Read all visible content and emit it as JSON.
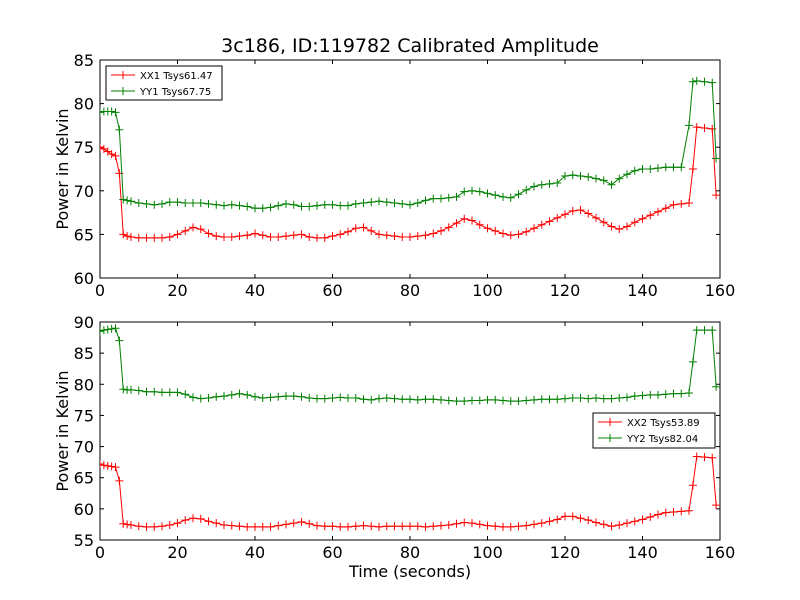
{
  "chart_data": {
    "type": "line",
    "title": "3c186, ID:119782 Calibrated Amplitude",
    "xlabel": "Time (seconds)",
    "ylabel": "Power in Kelvin",
    "colors": {
      "XX": "#ff0000",
      "YY": "#008000"
    },
    "subplots": [
      {
        "ylabel": "Power in Kelvin",
        "xlim": [
          0,
          160
        ],
        "ylim": [
          60,
          85
        ],
        "xticks": [
          "0",
          "20",
          "40",
          "60",
          "80",
          "100",
          "120",
          "140",
          "160"
        ],
        "yticks": [
          "60",
          "65",
          "70",
          "75",
          "80",
          "85"
        ],
        "legend_position": "top-left",
        "x": [
          0,
          1,
          2,
          3,
          4,
          5,
          6,
          7,
          8,
          10,
          12,
          14,
          16,
          18,
          20,
          22,
          24,
          26,
          28,
          30,
          32,
          34,
          36,
          38,
          40,
          42,
          44,
          46,
          48,
          50,
          52,
          54,
          56,
          58,
          60,
          62,
          64,
          66,
          68,
          70,
          72,
          74,
          76,
          78,
          80,
          82,
          84,
          86,
          88,
          90,
          92,
          94,
          96,
          98,
          100,
          102,
          104,
          106,
          108,
          110,
          112,
          114,
          116,
          118,
          120,
          122,
          124,
          126,
          128,
          130,
          132,
          134,
          136,
          138,
          140,
          142,
          144,
          146,
          148,
          150,
          152,
          153,
          154,
          156,
          158,
          159
        ],
        "series": [
          {
            "name": "XX1 Tsys61.47",
            "color": "#ff0000",
            "values": [
              75,
              74.8,
              74.5,
              74.2,
              74,
              72,
              65,
              64.8,
              64.7,
              64.6,
              64.6,
              64.6,
              64.6,
              64.7,
              65,
              65.4,
              65.8,
              65.6,
              65.1,
              64.8,
              64.7,
              64.7,
              64.8,
              64.9,
              65.1,
              64.9,
              64.7,
              64.7,
              64.8,
              64.9,
              65,
              64.7,
              64.6,
              64.6,
              64.8,
              65,
              65.3,
              65.7,
              65.8,
              65.4,
              65,
              64.9,
              64.8,
              64.7,
              64.7,
              64.8,
              64.9,
              65.1,
              65.4,
              65.8,
              66.3,
              66.8,
              66.6,
              66.1,
              65.7,
              65.4,
              65.1,
              64.9,
              65,
              65.3,
              65.7,
              66.1,
              66.5,
              66.9,
              67.3,
              67.7,
              67.8,
              67.4,
              66.9,
              66.4,
              65.9,
              65.6,
              65.9,
              66.4,
              66.8,
              67.2,
              67.6,
              68,
              68.4,
              68.5,
              68.6,
              72.5,
              77.3,
              77.2,
              77.1,
              69.5
            ]
          },
          {
            "name": "YY1 Tsys67.75",
            "color": "#008000",
            "values": [
              79,
              79.1,
              79.1,
              79.1,
              79,
              77,
              69,
              68.9,
              68.8,
              68.6,
              68.5,
              68.4,
              68.5,
              68.7,
              68.7,
              68.6,
              68.6,
              68.6,
              68.5,
              68.4,
              68.3,
              68.4,
              68.3,
              68.2,
              68,
              68,
              68.1,
              68.3,
              68.5,
              68.4,
              68.2,
              68.2,
              68.3,
              68.4,
              68.4,
              68.3,
              68.3,
              68.5,
              68.6,
              68.7,
              68.8,
              68.7,
              68.6,
              68.5,
              68.4,
              68.6,
              68.9,
              69.1,
              69.1,
              69.2,
              69.3,
              69.9,
              70,
              69.9,
              69.7,
              69.5,
              69.3,
              69.2,
              69.6,
              70.1,
              70.5,
              70.7,
              70.8,
              70.9,
              71.7,
              71.8,
              71.7,
              71.6,
              71.4,
              71.2,
              70.7,
              71.4,
              71.9,
              72.3,
              72.5,
              72.5,
              72.6,
              72.7,
              72.7,
              72.7,
              77.5,
              82.5,
              82.6,
              82.5,
              82.4,
              73.7
            ]
          }
        ]
      },
      {
        "ylabel": "Power in Kelvin",
        "xlim": [
          0,
          160
        ],
        "ylim": [
          55,
          90
        ],
        "xticks": [
          "0",
          "20",
          "40",
          "60",
          "80",
          "100",
          "120",
          "140",
          "160"
        ],
        "yticks": [
          "55",
          "60",
          "65",
          "70",
          "75",
          "80",
          "85",
          "90"
        ],
        "legend_position": "center-right",
        "x": [
          0,
          1,
          2,
          3,
          4,
          5,
          6,
          7,
          8,
          10,
          12,
          14,
          16,
          18,
          20,
          22,
          24,
          26,
          28,
          30,
          32,
          34,
          36,
          38,
          40,
          42,
          44,
          46,
          48,
          50,
          52,
          54,
          56,
          58,
          60,
          62,
          64,
          66,
          68,
          70,
          72,
          74,
          76,
          78,
          80,
          82,
          84,
          86,
          88,
          90,
          92,
          94,
          96,
          98,
          100,
          102,
          104,
          106,
          108,
          110,
          112,
          114,
          116,
          118,
          120,
          122,
          124,
          126,
          128,
          130,
          132,
          134,
          136,
          138,
          140,
          142,
          144,
          146,
          148,
          150,
          152,
          153,
          154,
          156,
          158,
          159
        ],
        "series": [
          {
            "name": "XX2 Tsys53.89",
            "color": "#ff0000",
            "values": [
              67.2,
              67,
              66.9,
              66.8,
              66.7,
              64.5,
              57.6,
              57.5,
              57.4,
              57.2,
              57.1,
              57.1,
              57.2,
              57.4,
              57.7,
              58.2,
              58.5,
              58.4,
              58,
              57.7,
              57.4,
              57.3,
              57.2,
              57.1,
              57.1,
              57.1,
              57.1,
              57.3,
              57.5,
              57.7,
              57.9,
              57.6,
              57.3,
              57.2,
              57.2,
              57.1,
              57.1,
              57.2,
              57.3,
              57.2,
              57.1,
              57.2,
              57.2,
              57.2,
              57.2,
              57.2,
              57.1,
              57.2,
              57.3,
              57.4,
              57.6,
              57.8,
              57.7,
              57.5,
              57.3,
              57.2,
              57.1,
              57.1,
              57.2,
              57.3,
              57.5,
              57.7,
              58,
              58.3,
              58.8,
              58.8,
              58.5,
              58.2,
              57.8,
              57.5,
              57.2,
              57.4,
              57.7,
              58,
              58.3,
              58.7,
              59.1,
              59.4,
              59.5,
              59.6,
              59.7,
              63.8,
              68.4,
              68.3,
              68.2,
              60.6
            ]
          },
          {
            "name": "YY2 Tsys82.04",
            "color": "#008000",
            "values": [
              88.5,
              88.7,
              88.8,
              88.9,
              89,
              87,
              79.2,
              79.1,
              79.1,
              79,
              78.8,
              78.8,
              78.7,
              78.7,
              78.7,
              78.4,
              77.9,
              77.7,
              77.8,
              78,
              78.1,
              78.3,
              78.5,
              78.3,
              78,
              77.8,
              77.9,
              78,
              78.1,
              78.1,
              78,
              77.8,
              77.7,
              77.7,
              77.8,
              77.9,
              77.8,
              77.8,
              77.6,
              77.5,
              77.7,
              77.8,
              77.7,
              77.6,
              77.6,
              77.5,
              77.6,
              77.6,
              77.5,
              77.4,
              77.3,
              77.3,
              77.4,
              77.4,
              77.5,
              77.5,
              77.4,
              77.3,
              77.3,
              77.4,
              77.5,
              77.6,
              77.6,
              77.6,
              77.7,
              77.8,
              77.8,
              77.7,
              77.8,
              77.7,
              77.7,
              77.8,
              77.9,
              78.1,
              78.2,
              78.3,
              78.3,
              78.4,
              78.5,
              78.5,
              78.6,
              83.6,
              88.7,
              88.7,
              88.7,
              79.6
            ]
          }
        ]
      }
    ]
  }
}
